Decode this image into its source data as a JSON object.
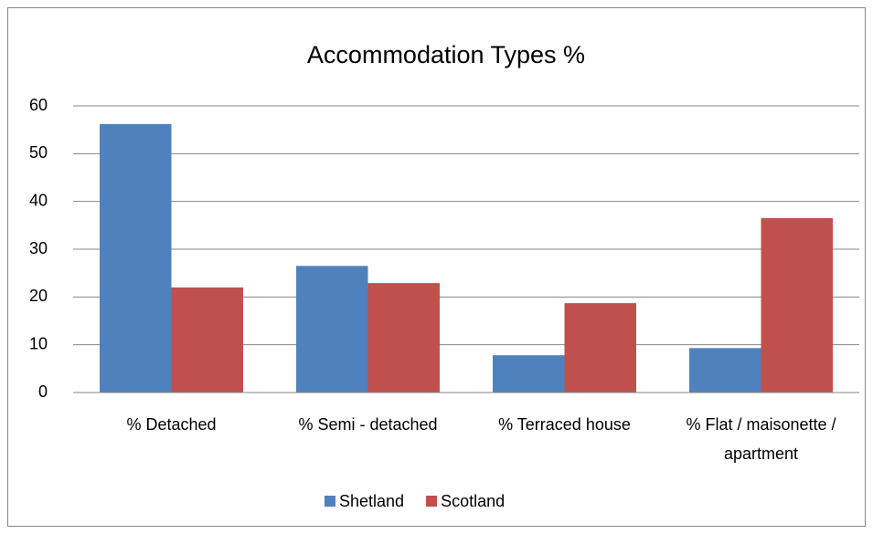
{
  "chart_data": {
    "type": "bar",
    "title": "Accommodation Types %",
    "categories": [
      "% Detached",
      "% Semi - detached",
      "% Terraced house",
      "% Flat / maisonette / apartment"
    ],
    "series": [
      {
        "name": "Shetland",
        "color": "#4f81bd",
        "values": [
          56.2,
          26.5,
          7.8,
          9.3
        ]
      },
      {
        "name": "Scotland",
        "color": "#c0504d",
        "values": [
          22.0,
          22.9,
          18.7,
          36.5
        ]
      }
    ],
    "ylim": [
      0,
      60
    ],
    "yticks": [
      0,
      10,
      20,
      30,
      40,
      50,
      60
    ],
    "grid": true,
    "legend": "bottom"
  }
}
